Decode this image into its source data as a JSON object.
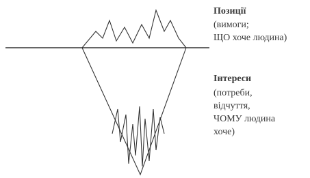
{
  "labels": {
    "positions": {
      "title": "Позиції",
      "lines": [
        "(вимоги;",
        "ЩО хоче людина)"
      ]
    },
    "interests": {
      "title": "Інтереси",
      "lines": [
        "(потреби,",
        "відчуття,",
        "ЧОМУ людина",
        "хоче)"
      ]
    }
  }
}
